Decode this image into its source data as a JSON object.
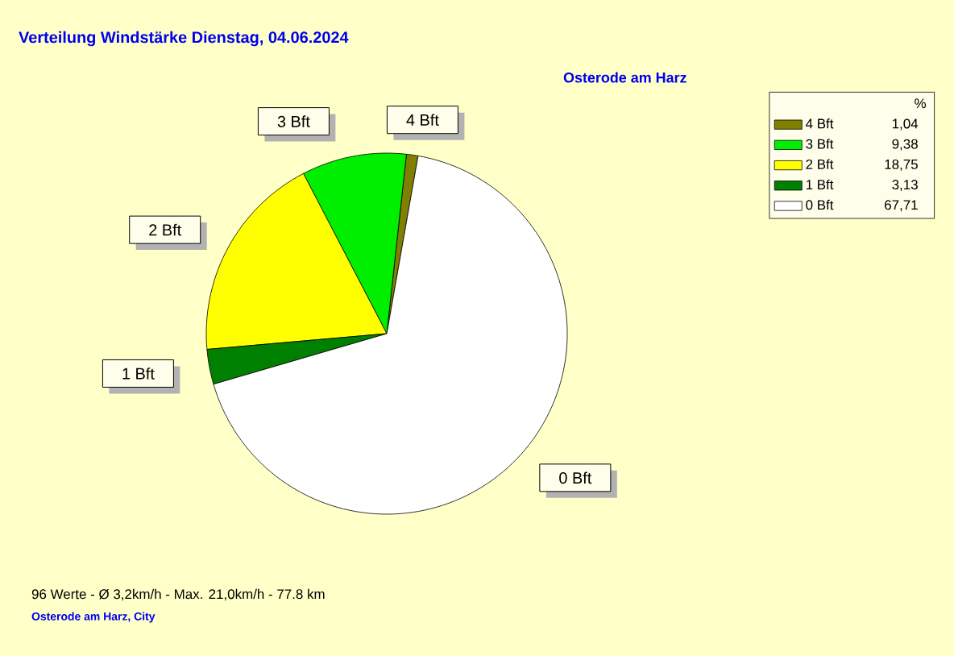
{
  "chart_data": {
    "type": "pie",
    "title": "Verteilung Windstärke  Dienstag, 04.06.2024",
    "subtitle": "Osterode am Harz",
    "legend_title": "%",
    "categories": [
      "4 Bft",
      "3 Bft",
      "2 Bft",
      "1 Bft",
      "0 Bft"
    ],
    "values": [
      1.04,
      9.38,
      18.75,
      3.13,
      67.71
    ],
    "value_labels": [
      "1,04",
      "9,38",
      "18,75",
      "3,13",
      "67,71"
    ],
    "colors": [
      "#808000",
      "#00ee00",
      "#ffff00",
      "#008000",
      "#ffffff"
    ],
    "legend": "top right",
    "annotations": [
      "96 Werte   -   Ø 3,2km/h  -  Max. 21,0km/h   -   77.8 km",
      "Osterode am Harz, City"
    ]
  }
}
